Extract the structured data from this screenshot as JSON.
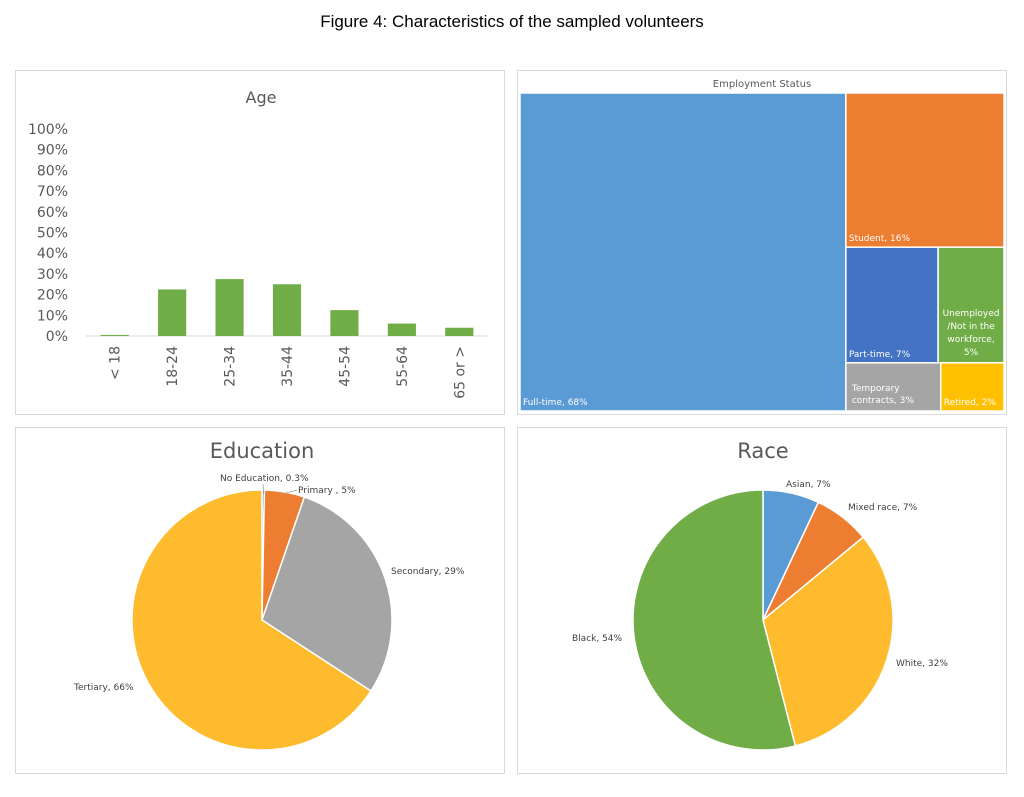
{
  "figure_title": "Figure 4: Characteristics of the sampled volunteers",
  "chart_data": [
    {
      "type": "bar",
      "title": "Age",
      "categories": [
        "< 18",
        "18-24",
        "25-34",
        "35-44",
        "45-54",
        "55-64",
        "65 or >"
      ],
      "values": [
        0.5,
        22.5,
        27.5,
        25,
        12.5,
        6,
        4
      ],
      "ylim": [
        0,
        100
      ],
      "yticks": [
        "0%",
        "10%",
        "20%",
        "30%",
        "40%",
        "50%",
        "60%",
        "70%",
        "80%",
        "90%",
        "100%"
      ],
      "color": "#70ad47",
      "xlabel": "",
      "ylabel": ""
    },
    {
      "type": "treemap",
      "title": "Employment Status",
      "items": [
        {
          "label": "Full-time, 68%",
          "value": 68,
          "color": "#5b9bd5"
        },
        {
          "label": "Student, 16%",
          "value": 16,
          "color": "#ed7d31"
        },
        {
          "label": "Part-time, 7%",
          "value": 7,
          "color": "#4472c4"
        },
        {
          "label": "Unemployed /Not in the workforce, 5%",
          "value": 5,
          "color": "#70ad47"
        },
        {
          "label": "Temporary contracts, 3%",
          "value": 3,
          "color": "#a5a5a5"
        },
        {
          "label": "Retired, 2%",
          "value": 2,
          "color": "#ffc000"
        }
      ]
    },
    {
      "type": "pie",
      "title": "Education",
      "slices": [
        {
          "label": "No Education, 0.3%",
          "value": 0.3,
          "color": "#5b9bd5"
        },
        {
          "label": "Primary , 5%",
          "value": 5,
          "color": "#ed7d31"
        },
        {
          "label": "Secondary, 29%",
          "value": 29,
          "color": "#a5a5a5"
        },
        {
          "label": "Tertiary, 66%",
          "value": 66,
          "color": "#fdbb2d"
        }
      ]
    },
    {
      "type": "pie",
      "title": "Race",
      "slices": [
        {
          "label": "Asian, 7%",
          "value": 7,
          "color": "#5b9bd5"
        },
        {
          "label": "Mixed race, 7%",
          "value": 7,
          "color": "#ed7d31"
        },
        {
          "label": "White, 32%",
          "value": 32,
          "color": "#fdbb2d"
        },
        {
          "label": "Black, 54%",
          "value": 54,
          "color": "#70ad47"
        }
      ]
    }
  ]
}
